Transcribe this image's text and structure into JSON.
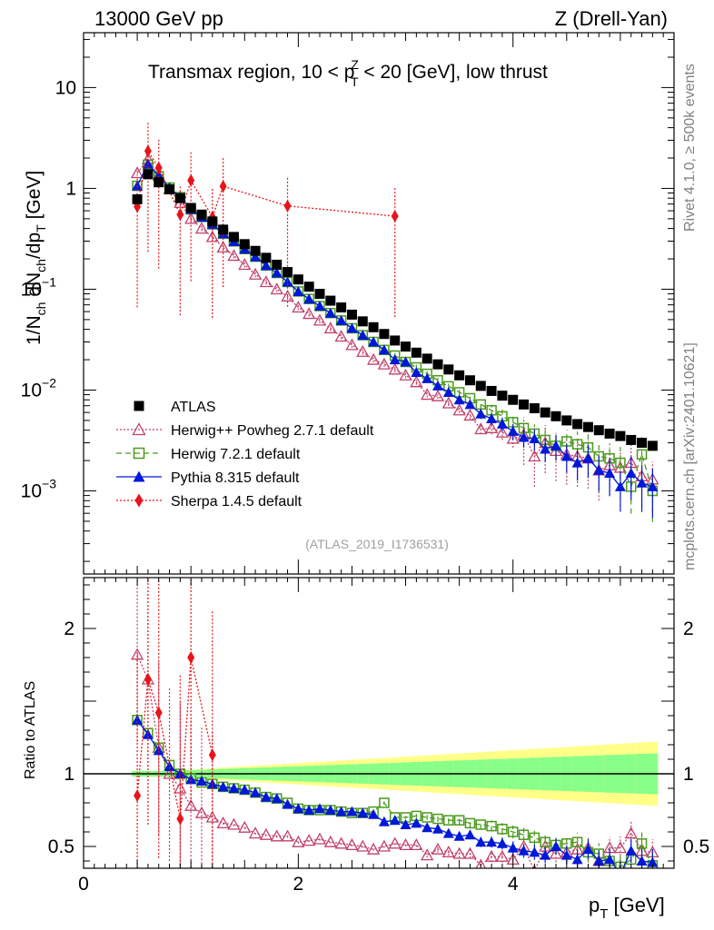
{
  "header": {
    "energy": "13000 GeV pp",
    "process": "Z (Drell-Yan)",
    "title": "Transmax region, 10 < p",
    "title_sup": "Z",
    "title_sub": "T",
    "title_tail": " < 20 [GeV], low thrust",
    "watermark": "(ATLAS_2019_I1736531)",
    "side_top": "Rivet 4.1.0, ≥ 500k events",
    "side_bottom": "mcplots.cern.ch [arXiv:2401.10621]"
  },
  "chart_data": [
    {
      "type": "scatter",
      "panel": "main",
      "ylabel": "1/N_ch dN_ch/dp_T [GeV]",
      "yscale": "log",
      "xlim": [
        0,
        5.5
      ],
      "ylim": [
        0.00015,
        35
      ],
      "y_ticks": [
        {
          "value": 10,
          "label": "10"
        },
        {
          "value": 1,
          "label": "1"
        },
        {
          "value": 0.1,
          "label": "10",
          "exp": "−1"
        },
        {
          "value": 0.01,
          "label": "10",
          "exp": "−2"
        },
        {
          "value": 0.001,
          "label": "10",
          "exp": "−3"
        }
      ],
      "series": [
        {
          "name": "ATLAS",
          "color": "#000000",
          "marker": "square",
          "line": "none",
          "x": [
            0.5,
            0.6,
            0.7,
            0.8,
            0.9,
            1.0,
            1.1,
            1.2,
            1.3,
            1.4,
            1.5,
            1.6,
            1.7,
            1.8,
            1.9,
            2.0,
            2.1,
            2.2,
            2.3,
            2.4,
            2.5,
            2.6,
            2.7,
            2.8,
            2.9,
            3.0,
            3.1,
            3.2,
            3.3,
            3.4,
            3.5,
            3.6,
            3.7,
            3.8,
            3.9,
            4.0,
            4.1,
            4.2,
            4.3,
            4.4,
            4.5,
            4.6,
            4.7,
            4.8,
            4.9,
            5.0,
            5.1,
            5.2,
            5.3
          ],
          "y": [
            0.78,
            1.38,
            1.15,
            0.98,
            0.8,
            0.64,
            0.55,
            0.47,
            0.39,
            0.33,
            0.28,
            0.24,
            0.205,
            0.175,
            0.148,
            0.125,
            0.106,
            0.09,
            0.077,
            0.066,
            0.056,
            0.048,
            0.042,
            0.036,
            0.031,
            0.027,
            0.0235,
            0.0205,
            0.018,
            0.016,
            0.014,
            0.0125,
            0.011,
            0.0098,
            0.0088,
            0.008,
            0.0072,
            0.0066,
            0.006,
            0.0055,
            0.005,
            0.0046,
            0.0043,
            0.004,
            0.0037,
            0.0035,
            0.0032,
            0.003,
            0.0028
          ]
        },
        {
          "name": "Herwig++ Powheg 2.7.1 default",
          "color": "#c0406a",
          "marker": "triangle-open",
          "line": "dotted",
          "x": [
            0.5,
            0.6,
            0.7,
            0.8,
            0.9,
            1.0,
            1.1,
            1.2,
            1.3,
            1.4,
            1.5,
            1.6,
            1.7,
            1.8,
            1.9,
            2.0,
            2.1,
            2.2,
            2.3,
            2.4,
            2.5,
            2.6,
            2.7,
            2.8,
            2.9,
            3.0,
            3.1,
            3.2,
            3.3,
            3.4,
            3.5,
            3.6,
            3.7,
            3.8,
            3.9,
            4.0,
            4.1,
            4.2,
            4.3,
            4.4,
            4.5,
            4.6,
            4.7,
            4.8,
            4.9,
            5.0,
            5.1,
            5.2,
            5.3
          ],
          "y": [
            1.42,
            1.95,
            1.35,
            0.98,
            0.72,
            0.5,
            0.4,
            0.33,
            0.26,
            0.215,
            0.175,
            0.14,
            0.118,
            0.1,
            0.085,
            0.066,
            0.057,
            0.049,
            0.041,
            0.034,
            0.028,
            0.024,
            0.02,
            0.018,
            0.016,
            0.014,
            0.012,
            0.009,
            0.0087,
            0.0074,
            0.0063,
            0.0056,
            0.0041,
            0.0042,
            0.0038,
            0.0033,
            0.0036,
            0.0022,
            0.003,
            0.0025,
            0.0023,
            0.0022,
            0.0021,
            0.0016,
            0.0018,
            0.0017,
            0.0019,
            0.0014,
            0.0013
          ]
        },
        {
          "name": "Herwig 7.2.1 default",
          "color": "#4b9a1c",
          "marker": "square-open",
          "line": "dashed",
          "x": [
            0.5,
            0.6,
            0.7,
            0.8,
            0.9,
            1.0,
            1.1,
            1.2,
            1.3,
            1.4,
            1.5,
            1.6,
            1.7,
            1.8,
            1.9,
            2.0,
            2.1,
            2.2,
            2.3,
            2.4,
            2.5,
            2.6,
            2.7,
            2.8,
            2.9,
            3.0,
            3.1,
            3.2,
            3.3,
            3.4,
            3.5,
            3.6,
            3.7,
            3.8,
            3.9,
            4.0,
            4.1,
            4.2,
            4.3,
            4.4,
            4.5,
            4.6,
            4.7,
            4.8,
            4.9,
            5.0,
            5.1,
            5.2,
            5.3
          ],
          "y": [
            1.06,
            1.72,
            1.32,
            1.02,
            0.82,
            0.62,
            0.52,
            0.44,
            0.355,
            0.298,
            0.25,
            0.21,
            0.172,
            0.145,
            0.118,
            0.095,
            0.08,
            0.068,
            0.058,
            0.049,
            0.041,
            0.035,
            0.03,
            0.025,
            0.022,
            0.019,
            0.0168,
            0.0145,
            0.0125,
            0.0109,
            0.0095,
            0.0083,
            0.0072,
            0.0063,
            0.0055,
            0.0048,
            0.0042,
            0.0037,
            0.0032,
            0.0028,
            0.0031,
            0.0029,
            0.0027,
            0.0022,
            0.0021,
            0.0019,
            0.0011,
            0.0023,
            0.001
          ]
        },
        {
          "name": "Pythia 8.315 default",
          "color": "#0018d8",
          "marker": "triangle",
          "line": "solid",
          "x": [
            0.5,
            0.6,
            0.7,
            0.8,
            0.9,
            1.0,
            1.1,
            1.2,
            1.3,
            1.4,
            1.5,
            1.6,
            1.7,
            1.8,
            1.9,
            2.0,
            2.1,
            2.2,
            2.3,
            2.4,
            2.5,
            2.6,
            2.7,
            2.8,
            2.9,
            3.0,
            3.1,
            3.2,
            3.3,
            3.4,
            3.5,
            3.6,
            3.7,
            3.8,
            3.9,
            4.0,
            4.1,
            4.2,
            4.3,
            4.4,
            4.5,
            4.6,
            4.7,
            4.8,
            4.9,
            5.0,
            5.1,
            5.2,
            5.3
          ],
          "y": [
            1.06,
            1.75,
            1.32,
            1.02,
            0.82,
            0.62,
            0.52,
            0.44,
            0.355,
            0.298,
            0.25,
            0.21,
            0.172,
            0.145,
            0.118,
            0.095,
            0.08,
            0.068,
            0.058,
            0.049,
            0.041,
            0.035,
            0.03,
            0.025,
            0.02,
            0.019,
            0.015,
            0.013,
            0.011,
            0.0095,
            0.008,
            0.0072,
            0.0058,
            0.0052,
            0.0046,
            0.0039,
            0.0034,
            0.0033,
            0.0026,
            0.0028,
            0.0022,
            0.0019,
            0.0021,
            0.0016,
            0.0015,
            0.0011,
            0.0015,
            0.0012,
            0.0011
          ]
        },
        {
          "name": "Sherpa 1.4.5 default",
          "color": "#e8141a",
          "marker": "diamond",
          "line": "dotted",
          "x": [
            0.5,
            0.6,
            0.7,
            0.9,
            1.0,
            1.2,
            1.3,
            1.9,
            2.9
          ],
          "y": [
            0.66,
            2.35,
            1.6,
            0.55,
            1.2,
            0.52,
            1.05,
            0.67,
            0.53
          ]
        }
      ]
    },
    {
      "type": "scatter",
      "panel": "ratio",
      "xlabel": "p_T [GeV]",
      "ylabel": "Ratio to ATLAS",
      "xlim": [
        0,
        5.5
      ],
      "ylim": [
        0.35,
        2.35
      ],
      "x_ticks": [
        {
          "value": 0,
          "label": "0"
        },
        {
          "value": 2,
          "label": "2"
        },
        {
          "value": 4,
          "label": "4"
        }
      ],
      "y_ticks": [
        {
          "value": 0.5,
          "label": "0.5"
        },
        {
          "value": 1,
          "label": "1"
        },
        {
          "value": 2,
          "label": "2"
        }
      ],
      "series": [
        {
          "name": "Herwig++ Powheg 2.7.1 default",
          "x": [
            0.5,
            0.6,
            0.7,
            0.8,
            0.9,
            1.0,
            1.1,
            1.2,
            1.3,
            1.4,
            1.5,
            1.6,
            1.7,
            1.8,
            1.9,
            2.0,
            2.1,
            2.2,
            2.3,
            2.4,
            2.5,
            2.6,
            2.7,
            2.8,
            2.9,
            3.0,
            3.1,
            3.2,
            3.3,
            3.4,
            3.5,
            3.6,
            3.7,
            3.8,
            3.9,
            4.0,
            4.1,
            4.2,
            4.3,
            4.4,
            4.5,
            4.6,
            4.7,
            4.8,
            4.9,
            5.0,
            5.1,
            5.2,
            5.3
          ],
          "y": [
            1.82,
            1.65,
            1.18,
            1.0,
            0.9,
            0.78,
            0.73,
            0.7,
            0.66,
            0.65,
            0.63,
            0.59,
            0.58,
            0.57,
            0.57,
            0.53,
            0.54,
            0.55,
            0.53,
            0.52,
            0.51,
            0.5,
            0.48,
            0.5,
            0.52,
            0.51,
            0.51,
            0.44,
            0.48,
            0.46,
            0.45,
            0.45,
            0.37,
            0.43,
            0.43,
            0.41,
            0.5,
            0.33,
            0.5,
            0.45,
            0.46,
            0.48,
            0.49,
            0.4,
            0.49,
            0.49,
            0.59,
            0.47,
            0.46
          ]
        },
        {
          "name": "Herwig 7.2.1 default",
          "x": [
            0.5,
            0.6,
            0.7,
            0.8,
            0.9,
            1.0,
            1.1,
            1.2,
            1.3,
            1.4,
            1.5,
            1.6,
            1.7,
            1.8,
            1.9,
            2.0,
            2.1,
            2.2,
            2.3,
            2.4,
            2.5,
            2.6,
            2.7,
            2.8,
            2.9,
            3.0,
            3.1,
            3.2,
            3.3,
            3.4,
            3.5,
            3.6,
            3.7,
            3.8,
            3.9,
            4.0,
            4.1,
            4.2,
            4.3,
            4.4,
            4.5,
            4.6,
            4.7,
            4.8,
            4.9,
            5.0,
            5.1,
            5.2,
            5.3
          ],
          "y": [
            1.37,
            1.28,
            1.18,
            1.06,
            1.0,
            0.97,
            0.94,
            0.93,
            0.91,
            0.9,
            0.89,
            0.87,
            0.84,
            0.83,
            0.8,
            0.76,
            0.75,
            0.75,
            0.75,
            0.74,
            0.73,
            0.73,
            0.74,
            0.8,
            0.7,
            0.7,
            0.71,
            0.7,
            0.69,
            0.68,
            0.68,
            0.66,
            0.65,
            0.64,
            0.62,
            0.6,
            0.58,
            0.56,
            0.53,
            0.51,
            0.52,
            0.53,
            0.46,
            0.45,
            0.4,
            0.36,
            0.41,
            0.52,
            0.37
          ]
        },
        {
          "name": "Pythia 8.315 default",
          "x": [
            0.5,
            0.6,
            0.7,
            0.8,
            0.9,
            1.0,
            1.1,
            1.2,
            1.3,
            1.4,
            1.5,
            1.6,
            1.7,
            1.8,
            1.9,
            2.0,
            2.1,
            2.2,
            2.3,
            2.4,
            2.5,
            2.6,
            2.7,
            2.8,
            2.9,
            3.0,
            3.1,
            3.2,
            3.3,
            3.4,
            3.5,
            3.6,
            3.7,
            3.8,
            3.9,
            4.0,
            4.1,
            4.2,
            4.3,
            4.4,
            4.5,
            4.6,
            4.7,
            4.8,
            4.9,
            5.0,
            5.1,
            5.2,
            5.3
          ],
          "y": [
            1.37,
            1.27,
            1.16,
            1.05,
            1.0,
            0.96,
            0.95,
            0.93,
            0.91,
            0.9,
            0.89,
            0.87,
            0.84,
            0.83,
            0.79,
            0.76,
            0.75,
            0.76,
            0.75,
            0.74,
            0.74,
            0.73,
            0.72,
            0.67,
            0.68,
            0.65,
            0.66,
            0.63,
            0.62,
            0.59,
            0.57,
            0.58,
            0.53,
            0.53,
            0.52,
            0.49,
            0.47,
            0.46,
            0.44,
            0.5,
            0.44,
            0.41,
            0.48,
            0.4,
            0.41,
            0.31,
            0.47,
            0.4,
            0.39
          ]
        },
        {
          "name": "Sherpa 1.4.5 default",
          "x": [
            0.5,
            0.6,
            0.7,
            0.9,
            1.0,
            1.2
          ],
          "y": [
            0.85,
            1.65,
            1.42,
            0.69,
            1.8,
            1.13
          ]
        }
      ]
    }
  ]
}
